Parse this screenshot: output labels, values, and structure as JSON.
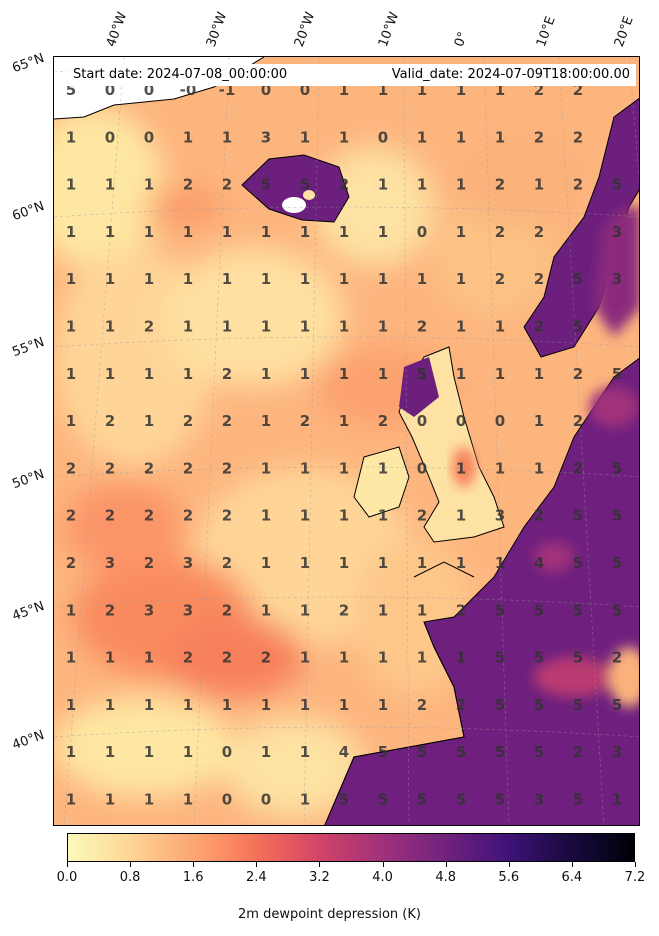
{
  "title_left": "Start date: 2024-07-08_00:00:00",
  "title_right": "Valid_date: 2024-07-09T18:00:00.00",
  "colorbar": {
    "label": "2m dewpoint depression (K)",
    "ticks": [
      "0.0",
      "0.8",
      "1.6",
      "2.4",
      "3.2",
      "4.0",
      "4.8",
      "5.6",
      "6.4",
      "7.2"
    ],
    "vmin": 0.0,
    "vmax": 7.2,
    "colors": [
      "#fcf9bc",
      "#fde9a6",
      "#fed495",
      "#fdbd82",
      "#fca672",
      "#fb8d61",
      "#f37259",
      "#e5595f",
      "#d14568",
      "#b93a71",
      "#a0317a",
      "#872a7d",
      "#70227d",
      "#581a7b",
      "#401378",
      "#2b0d5a",
      "#180a3e",
      "#0b0624",
      "#000004"
    ]
  },
  "lon_labels": [
    "40°W",
    "30°W",
    "20°W",
    "10°W",
    "0°",
    "10°E",
    "20°E"
  ],
  "lat_labels": [
    "65°N",
    "60°N",
    "55°N",
    "50°N",
    "45°N",
    "40°N"
  ],
  "grid_values": [
    [
      "5",
      "0",
      "0",
      "-0",
      "-1",
      "0",
      "0",
      "1",
      "1",
      "1",
      "1",
      "1",
      "2",
      "2",
      ""
    ],
    [
      "1",
      "0",
      "0",
      "1",
      "1",
      "3",
      "1",
      "1",
      "0",
      "1",
      "1",
      "1",
      "2",
      "2",
      ""
    ],
    [
      "1",
      "1",
      "1",
      "2",
      "2",
      "5",
      "5",
      "2",
      "1",
      "1",
      "1",
      "2",
      "1",
      "2",
      "5"
    ],
    [
      "1",
      "1",
      "1",
      "1",
      "1",
      "1",
      "1",
      "1",
      "1",
      "0",
      "1",
      "2",
      "2",
      "",
      "3"
    ],
    [
      "1",
      "1",
      "1",
      "1",
      "1",
      "1",
      "1",
      "1",
      "1",
      "1",
      "1",
      "2",
      "2",
      "5",
      "3"
    ],
    [
      "1",
      "1",
      "2",
      "1",
      "1",
      "1",
      "1",
      "1",
      "1",
      "2",
      "1",
      "1",
      "2",
      "5",
      ""
    ],
    [
      "1",
      "1",
      "1",
      "1",
      "2",
      "1",
      "1",
      "1",
      "1",
      "5",
      "1",
      "1",
      "1",
      "2",
      "5"
    ],
    [
      "1",
      "2",
      "1",
      "2",
      "2",
      "1",
      "2",
      "1",
      "2",
      "0",
      "0",
      "0",
      "1",
      "2",
      ""
    ],
    [
      "2",
      "2",
      "2",
      "2",
      "2",
      "1",
      "1",
      "1",
      "1",
      "0",
      "1",
      "1",
      "1",
      "2",
      "5"
    ],
    [
      "2",
      "2",
      "2",
      "2",
      "2",
      "1",
      "1",
      "1",
      "1",
      "2",
      "1",
      "3",
      "2",
      "5",
      "5"
    ],
    [
      "2",
      "3",
      "2",
      "3",
      "2",
      "1",
      "1",
      "1",
      "1",
      "1",
      "1",
      "1",
      "4",
      "5",
      "5"
    ],
    [
      "1",
      "2",
      "3",
      "3",
      "2",
      "1",
      "1",
      "2",
      "1",
      "1",
      "2",
      "5",
      "5",
      "5",
      "5"
    ],
    [
      "1",
      "1",
      "1",
      "2",
      "2",
      "2",
      "1",
      "1",
      "1",
      "1",
      "1",
      "5",
      "5",
      "5",
      "2"
    ],
    [
      "1",
      "1",
      "1",
      "1",
      "1",
      "1",
      "1",
      "1",
      "1",
      "2",
      "2",
      "5",
      "5",
      "5",
      "5"
    ],
    [
      "1",
      "1",
      "1",
      "1",
      "0",
      "1",
      "1",
      "4",
      "5",
      "5",
      "5",
      "5",
      "5",
      "2",
      "3"
    ],
    [
      "1",
      "1",
      "1",
      "1",
      "0",
      "0",
      "1",
      "5",
      "5",
      "5",
      "5",
      "5",
      "3",
      "5",
      "1"
    ]
  ]
}
